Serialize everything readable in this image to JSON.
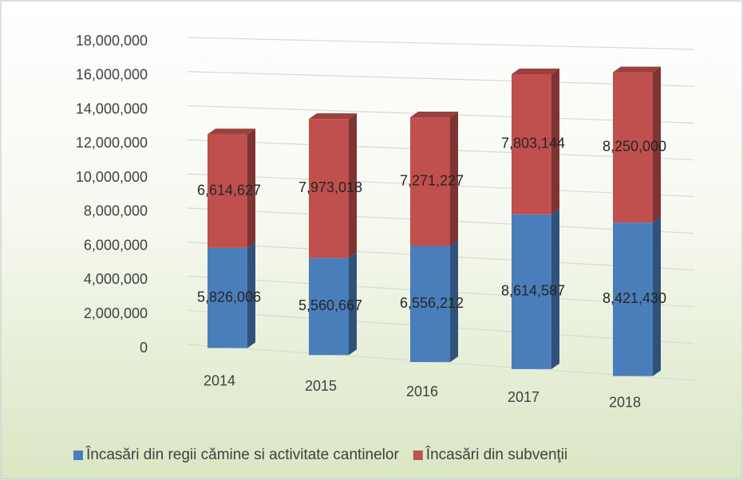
{
  "chart_data": {
    "type": "bar3d_stacked",
    "categories": [
      "2014",
      "2015",
      "2016",
      "2017",
      "2018"
    ],
    "series": [
      {
        "name": "Încasări din regii cămine si activitate cantinelor",
        "color": "#4a7ebb",
        "values": [
          5826006,
          5560667,
          6556212,
          8614587,
          8421430
        ],
        "value_labels": [
          "5,826,006",
          "5,560,667",
          "6,556,212",
          "8,614,587",
          "8,421,430"
        ]
      },
      {
        "name": "Încasări din subvenţii",
        "color": "#c0504d",
        "values": [
          6614627,
          7973018,
          7271227,
          7803144,
          8250000
        ],
        "value_labels": [
          "6,614,627",
          "7,973,018",
          "7,271,227",
          "7,803,144",
          "8,250,000"
        ]
      }
    ],
    "ylim": [
      0,
      18000000
    ],
    "yticks": [
      0,
      {
        "value": 2000000,
        "label": "2,000,000"
      },
      {
        "value": 4000000,
        "label": "4,000,000"
      },
      {
        "value": 6000000,
        "label": "6,000,000"
      },
      {
        "value": 8000000,
        "label": "8,000,000"
      },
      {
        "value": 10000000,
        "label": "10,000,000"
      },
      {
        "value": 12000000,
        "label": "12,000,000"
      },
      {
        "value": 14000000,
        "label": "14,000,000"
      },
      {
        "value": 16000000,
        "label": "16,000,000"
      },
      {
        "value": 18000000,
        "label": "18,000,000"
      }
    ],
    "grid": true,
    "legend": "bottom"
  }
}
